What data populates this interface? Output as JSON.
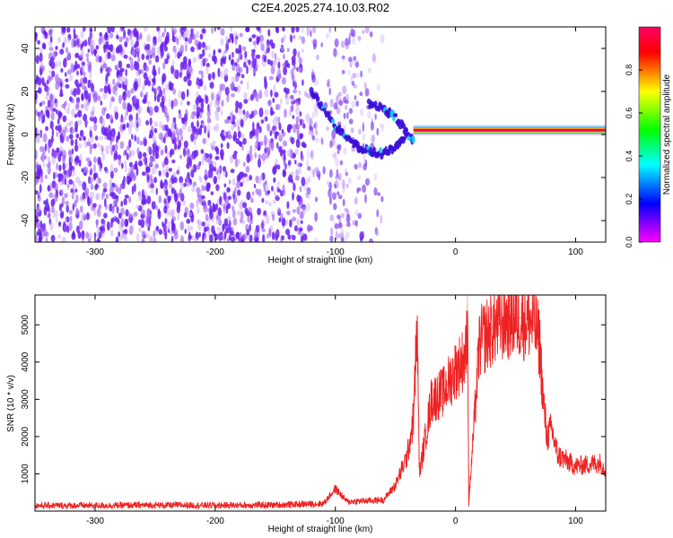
{
  "figure": {
    "title": "C2E4.2025.274.10.03.R02"
  },
  "chart_data": [
    {
      "type": "heatmap",
      "title": "",
      "xlabel": "Height of straight line (km)",
      "ylabel": "Frequency (Hz)",
      "xlim": [
        -350,
        125
      ],
      "ylim": [
        -50,
        50
      ],
      "xticks": [
        -300,
        -200,
        -100,
        0,
        100
      ],
      "yticks": [
        -40,
        -20,
        0,
        20,
        40
      ],
      "colorbar": {
        "label": "Normalized spectral amplitude",
        "range": [
          0,
          1
        ],
        "ticks": [
          0.0,
          0.2,
          0.4,
          0.6,
          0.8
        ],
        "colormap": [
          "#ff00ff",
          "#0000ff",
          "#00ffff",
          "#00ff00",
          "#ffff00",
          "#ff0000",
          "#ff0066"
        ]
      },
      "features": [
        {
          "name": "noise-region",
          "x_range": [
            -350,
            -60
          ],
          "freq_range": [
            -50,
            50
          ],
          "amplitude": 0.1
        },
        {
          "name": "descending-track",
          "x": [
            -120,
            -110,
            -100,
            -90,
            -80,
            -70,
            -60,
            -50,
            -45,
            -40
          ],
          "freq": [
            20,
            12,
            4,
            -2,
            -6,
            -8,
            -9,
            -6,
            -3,
            2
          ],
          "amplitude": 0.3
        },
        {
          "name": "loop-track",
          "x": [
            -72,
            -60,
            -50,
            -44,
            -40,
            -35
          ],
          "freq": [
            14,
            12,
            8,
            4,
            0,
            -2
          ],
          "amplitude": 0.3
        },
        {
          "name": "stable-line",
          "x_range": [
            -35,
            125
          ],
          "freq": 2,
          "amplitude": 0.95
        }
      ]
    },
    {
      "type": "line",
      "title": "",
      "xlabel": "Height of straight line (km)",
      "ylabel": "SNR (10 * v/v)",
      "xlim": [
        -350,
        125
      ],
      "ylim": [
        0,
        5800
      ],
      "xticks": [
        -300,
        -200,
        -100,
        0,
        100
      ],
      "yticks": [
        1000,
        2000,
        3000,
        4000,
        5000
      ],
      "series": [
        {
          "name": "SNR",
          "color": "#ee2222",
          "x": [
            -350,
            -300,
            -250,
            -200,
            -150,
            -110,
            -100,
            -90,
            -60,
            -50,
            -40,
            -35,
            -32,
            -30,
            -25,
            -20,
            -10,
            0,
            5,
            9,
            10,
            11,
            20,
            30,
            40,
            50,
            60,
            66,
            70,
            73,
            76,
            80,
            85,
            90,
            100,
            110,
            120,
            125
          ],
          "values": [
            150,
            150,
            160,
            155,
            165,
            200,
            600,
            250,
            300,
            700,
            1500,
            2500,
            5000,
            1000,
            2000,
            3000,
            3200,
            3800,
            4000,
            4200,
            5800,
            200,
            4500,
            4900,
            5100,
            5200,
            5150,
            5000,
            4500,
            3000,
            2000,
            2200,
            1500,
            1400,
            1200,
            1250,
            1300,
            1100
          ]
        }
      ]
    }
  ]
}
